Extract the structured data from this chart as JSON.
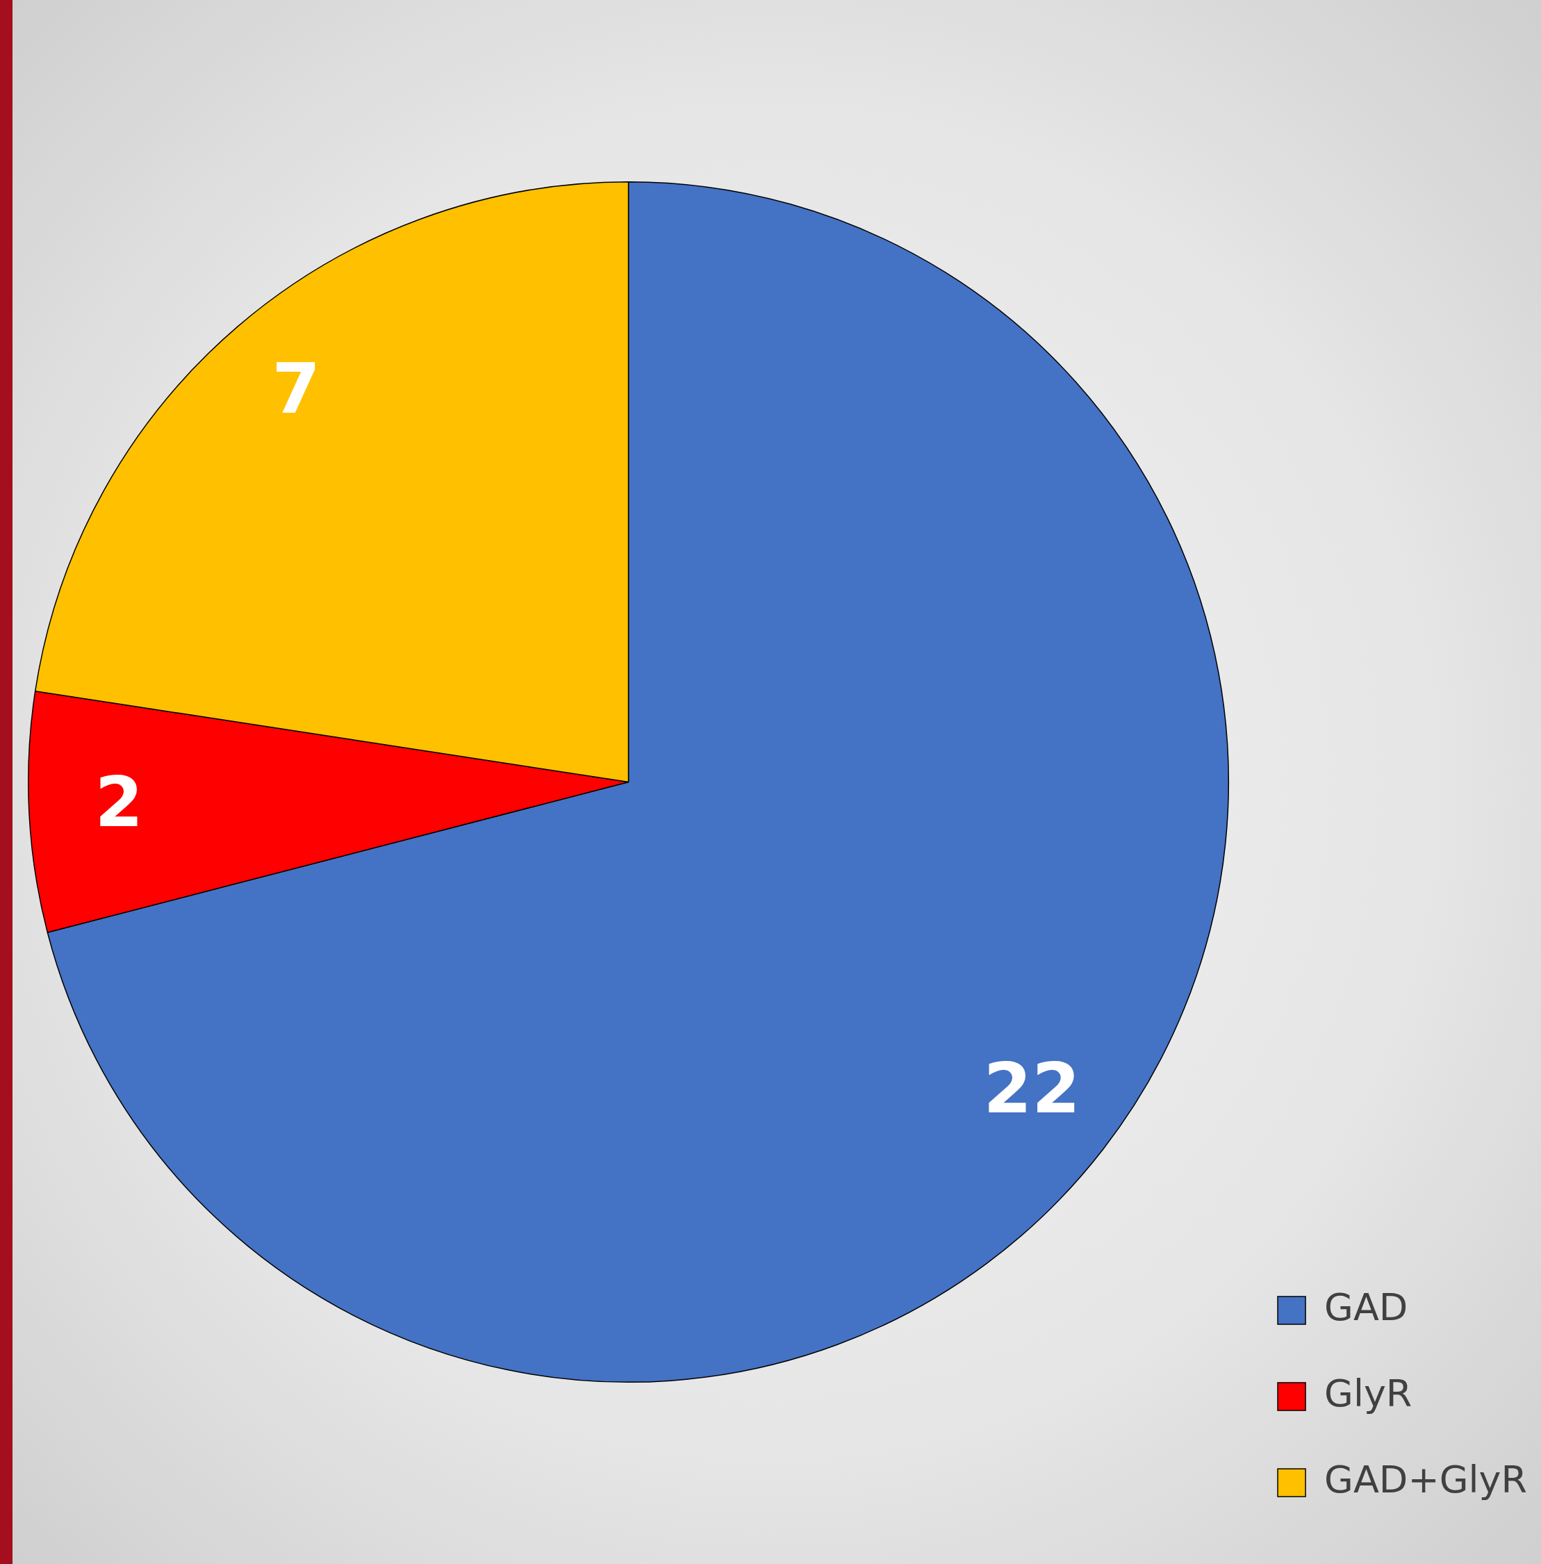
{
  "chart_data": {
    "type": "pie",
    "categories": [
      "GAD",
      "GlyR",
      "GAD+GlyR"
    ],
    "values": [
      22,
      2,
      7
    ],
    "colors": [
      "#4472c4",
      "#ff0000",
      "#ffc000"
    ],
    "data_labels": true,
    "legend": "bottom right"
  }
}
